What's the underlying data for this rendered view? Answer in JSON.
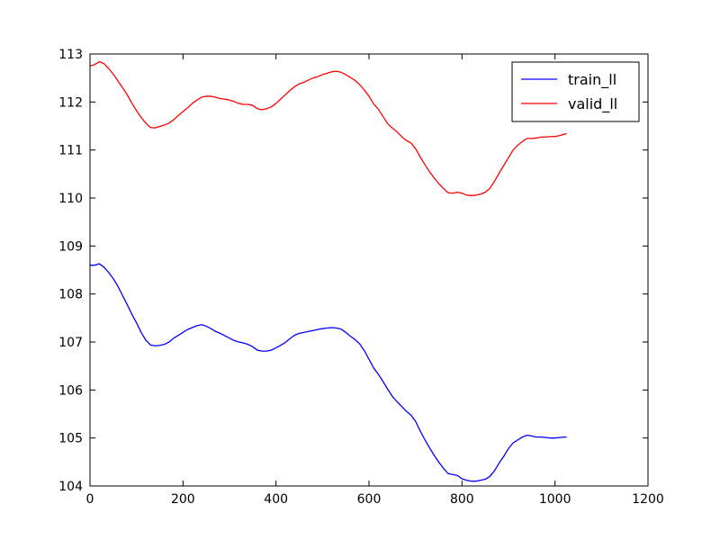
{
  "chart_data": {
    "type": "line",
    "title": "",
    "xlabel": "",
    "ylabel": "",
    "xlim": [
      0,
      1200
    ],
    "ylim": [
      104,
      113
    ],
    "xticks": [
      0,
      200,
      400,
      600,
      800,
      1000,
      1200
    ],
    "yticks": [
      104,
      105,
      106,
      107,
      108,
      109,
      110,
      111,
      112,
      113
    ],
    "grid": false,
    "legend": "top-right",
    "series": [
      {
        "name": "train_ll",
        "color": "#0000ff",
        "x": [
          0,
          10,
          20,
          30,
          40,
          50,
          60,
          70,
          80,
          90,
          100,
          110,
          120,
          130,
          140,
          150,
          160,
          170,
          180,
          190,
          200,
          210,
          220,
          230,
          240,
          250,
          260,
          270,
          280,
          290,
          300,
          310,
          320,
          330,
          340,
          350,
          360,
          370,
          380,
          390,
          400,
          410,
          420,
          430,
          440,
          450,
          460,
          470,
          480,
          490,
          500,
          510,
          520,
          530,
          540,
          550,
          560,
          570,
          580,
          590,
          600,
          610,
          620,
          630,
          640,
          650,
          660,
          670,
          680,
          690,
          700,
          710,
          720,
          730,
          740,
          750,
          760,
          770,
          780,
          790,
          800,
          810,
          820,
          830,
          840,
          850,
          860,
          870,
          880,
          890,
          900,
          910,
          920,
          930,
          940,
          950,
          960,
          970,
          980,
          990,
          1000,
          1010,
          1020,
          1025
        ],
        "y": [
          108.6,
          108.6,
          108.63,
          108.56,
          108.45,
          108.32,
          108.16,
          107.97,
          107.78,
          107.58,
          107.4,
          107.2,
          107.04,
          106.94,
          106.92,
          106.93,
          106.95,
          107.0,
          107.08,
          107.14,
          107.2,
          107.26,
          107.3,
          107.34,
          107.36,
          107.33,
          107.28,
          107.22,
          107.18,
          107.13,
          107.08,
          107.03,
          107.0,
          106.98,
          106.95,
          106.9,
          106.83,
          106.81,
          106.81,
          106.83,
          106.88,
          106.93,
          106.99,
          107.07,
          107.14,
          107.18,
          107.2,
          107.22,
          107.24,
          107.26,
          107.28,
          107.29,
          107.3,
          107.29,
          107.27,
          107.2,
          107.12,
          107.05,
          106.96,
          106.82,
          106.64,
          106.46,
          106.33,
          106.18,
          106.02,
          105.87,
          105.76,
          105.66,
          105.56,
          105.48,
          105.35,
          105.15,
          104.97,
          104.8,
          104.64,
          104.5,
          104.37,
          104.26,
          104.24,
          104.22,
          104.15,
          104.12,
          104.1,
          104.1,
          104.12,
          104.14,
          104.2,
          104.32,
          104.48,
          104.62,
          104.78,
          104.9,
          104.96,
          105.02,
          105.06,
          105.04,
          105.02,
          105.02,
          105.01,
          105.0,
          105.0,
          105.01,
          105.02,
          105.02
        ]
      },
      {
        "name": "valid_ll",
        "color": "#ff0000",
        "x": [
          0,
          10,
          20,
          30,
          40,
          50,
          60,
          70,
          80,
          90,
          100,
          110,
          120,
          130,
          140,
          150,
          160,
          170,
          180,
          190,
          200,
          210,
          220,
          230,
          240,
          250,
          260,
          270,
          280,
          290,
          300,
          310,
          320,
          330,
          340,
          350,
          360,
          370,
          380,
          390,
          400,
          410,
          420,
          430,
          440,
          450,
          460,
          470,
          480,
          490,
          500,
          510,
          520,
          530,
          540,
          550,
          560,
          570,
          580,
          590,
          600,
          610,
          620,
          630,
          640,
          650,
          660,
          670,
          680,
          690,
          700,
          710,
          720,
          730,
          740,
          750,
          760,
          770,
          780,
          790,
          800,
          810,
          820,
          830,
          840,
          850,
          860,
          870,
          880,
          890,
          900,
          910,
          920,
          930,
          940,
          950,
          960,
          970,
          980,
          990,
          1000,
          1010,
          1020,
          1025
        ],
        "y": [
          112.75,
          112.78,
          112.84,
          112.8,
          112.7,
          112.58,
          112.44,
          112.3,
          112.15,
          111.98,
          111.82,
          111.68,
          111.56,
          111.47,
          111.46,
          111.49,
          111.52,
          111.56,
          111.63,
          111.72,
          111.8,
          111.88,
          111.97,
          112.04,
          112.1,
          112.12,
          112.12,
          112.1,
          112.07,
          112.06,
          112.04,
          112.01,
          111.97,
          111.95,
          111.95,
          111.93,
          111.86,
          111.84,
          111.86,
          111.9,
          111.97,
          112.06,
          112.15,
          112.24,
          112.32,
          112.38,
          112.41,
          112.46,
          112.5,
          112.53,
          112.57,
          112.6,
          112.63,
          112.64,
          112.62,
          112.57,
          112.51,
          112.45,
          112.36,
          112.25,
          112.12,
          111.96,
          111.85,
          111.7,
          111.55,
          111.46,
          111.38,
          111.28,
          111.2,
          111.15,
          111.03,
          110.86,
          110.7,
          110.55,
          110.42,
          110.3,
          110.2,
          110.11,
          110.1,
          110.12,
          110.1,
          110.06,
          110.05,
          110.06,
          110.08,
          110.12,
          110.2,
          110.35,
          110.52,
          110.68,
          110.84,
          111.0,
          111.1,
          111.18,
          111.24,
          111.24,
          111.25,
          111.27,
          111.27,
          111.28,
          111.28,
          111.3,
          111.33,
          111.34
        ]
      }
    ]
  }
}
